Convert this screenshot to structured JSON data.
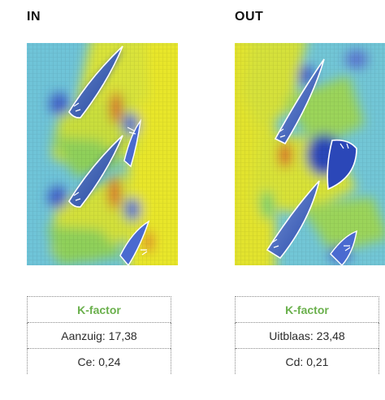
{
  "accent": "#6ab04c",
  "panels": [
    {
      "title": "IN",
      "header": "K-factor",
      "rows": [
        "Aanzuig: 17,38",
        "Ce: 0,24"
      ]
    },
    {
      "title": "OUT",
      "header": "K-factor",
      "rows": [
        "Uitblaas: 23,48",
        "Cd: 0,21"
      ]
    }
  ]
}
